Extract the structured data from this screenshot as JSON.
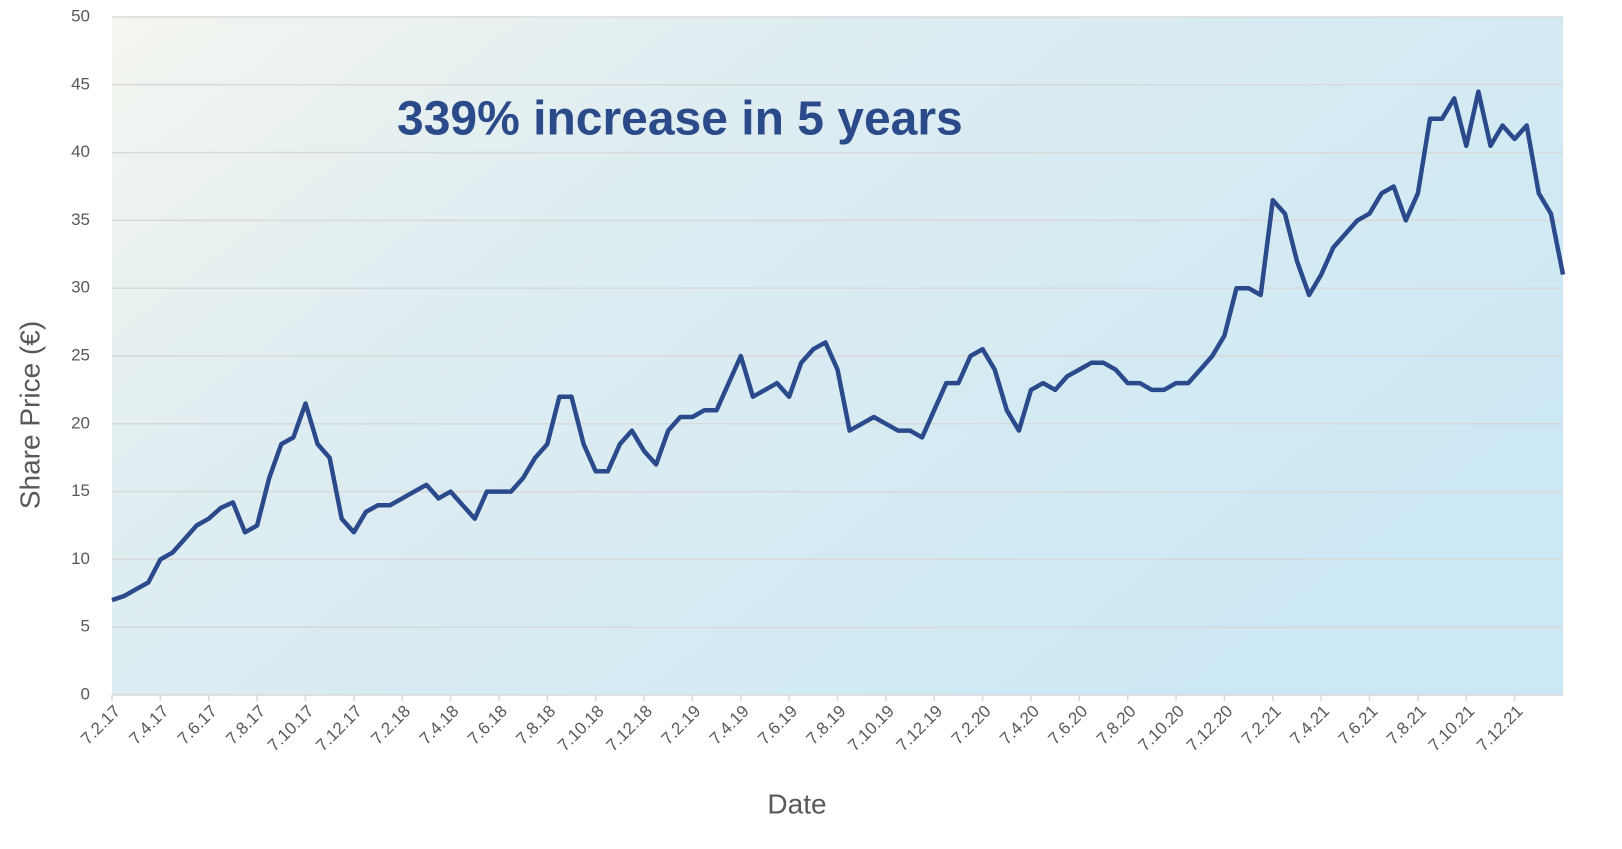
{
  "chart_data": {
    "type": "line",
    "annotation": "339% increase in 5 years",
    "x_label": "Date",
    "y_label": "Share Price (€)",
    "categories": [
      "7.2.17",
      null,
      null,
      null,
      "7.4.17",
      null,
      null,
      null,
      "7.6.17",
      null,
      null,
      null,
      "7.8.17",
      null,
      null,
      null,
      "7.10.17",
      null,
      null,
      null,
      "7.12.17",
      null,
      null,
      null,
      "7.2.18",
      null,
      null,
      null,
      "7.4.18",
      null,
      null,
      null,
      "7.6.18",
      null,
      null,
      null,
      "7.8.18",
      null,
      null,
      null,
      "7.10.18",
      null,
      null,
      null,
      "7.12.18",
      null,
      null,
      null,
      "7.2.19",
      null,
      null,
      null,
      "7.4.19",
      null,
      null,
      null,
      "7.6.19",
      null,
      null,
      null,
      "7.8.19",
      null,
      null,
      null,
      "7.10.19",
      null,
      null,
      null,
      "7.12.19",
      null,
      null,
      null,
      "7.2.20",
      null,
      null,
      null,
      "7.4.20",
      null,
      null,
      null,
      "7.6.20",
      null,
      null,
      null,
      "7.8.20",
      null,
      null,
      null,
      "7.10.20",
      null,
      null,
      null,
      "7.12.20",
      null,
      null,
      null,
      "7.2.21",
      null,
      null,
      null,
      "7.4.21",
      null,
      null,
      null,
      "7.6.21",
      null,
      null,
      null,
      "7.8.21",
      null,
      null,
      null,
      "7.10.21",
      null,
      null,
      null,
      "7.12.21",
      null,
      null,
      null,
      null
    ],
    "series": [
      {
        "name": "Share Price",
        "color": "#2b4a8b",
        "values": [
          7.0,
          7.3,
          7.8,
          8.3,
          10.0,
          10.5,
          11.5,
          12.5,
          13.0,
          13.8,
          14.2,
          12.0,
          12.5,
          16.0,
          18.5,
          19.0,
          21.5,
          18.5,
          17.5,
          13.0,
          12.0,
          13.5,
          14.0,
          14.0,
          14.5,
          15.0,
          15.5,
          14.5,
          15.0,
          14.0,
          13.0,
          15.0,
          15.0,
          15.0,
          16.0,
          17.5,
          18.5,
          22.0,
          22.0,
          18.5,
          16.5,
          16.5,
          18.5,
          19.5,
          18.0,
          17.0,
          19.5,
          20.5,
          20.5,
          21.0,
          21.0,
          23.0,
          25.0,
          22.0,
          22.5,
          23.0,
          22.0,
          24.5,
          25.5,
          26.0,
          24.0,
          19.5,
          20.0,
          20.5,
          20.0,
          19.5,
          19.5,
          19.0,
          21.0,
          23.0,
          23.0,
          25.0,
          25.5,
          24.0,
          21.0,
          19.5,
          22.5,
          23.0,
          22.5,
          23.5,
          24.0,
          24.5,
          24.5,
          24.0,
          23.0,
          23.0,
          22.5,
          22.5,
          23.0,
          23.0,
          24.0,
          25.0,
          26.5,
          30.0,
          30.0,
          29.5,
          36.5,
          35.5,
          32.0,
          29.5,
          31.0,
          33.0,
          34.0,
          35.0,
          35.5,
          37.0,
          37.5,
          35.0,
          37.0,
          42.5,
          42.5,
          44.0,
          40.5,
          44.5,
          40.5,
          42.0,
          41.0,
          42.0,
          37.0,
          35.5,
          31.0
        ]
      }
    ],
    "ylim": [
      0,
      50
    ],
    "yticks": [
      0,
      5,
      10,
      15,
      20,
      25,
      30,
      35,
      40,
      45,
      50
    ],
    "grid": true
  }
}
